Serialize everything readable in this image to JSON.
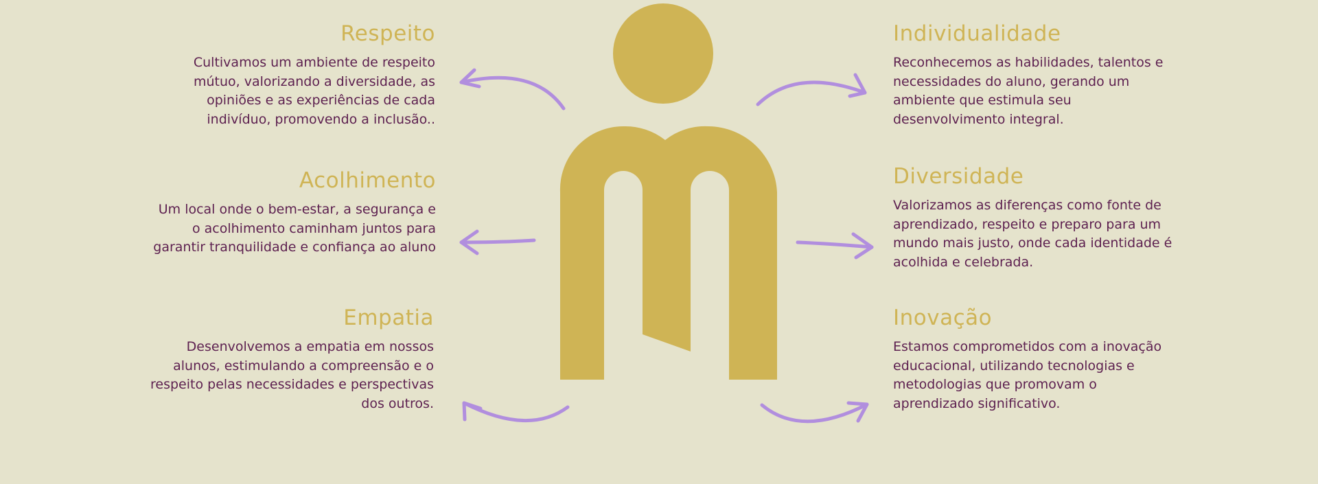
{
  "colors": {
    "background": "#e5e3cc",
    "heading": "#cfb455",
    "body_text": "#5c1f4f",
    "logo": "#cfb455",
    "arrow": "#b18ede"
  },
  "logo": {
    "icon": "person-letter-m-logo-icon"
  },
  "values": {
    "respeito": {
      "title": "Respeito",
      "text": "Cultivamos um ambiente de respeito mútuo, valorizando a diversidade, as opiniões e as experiências de cada indivíduo, promovendo a inclusão.."
    },
    "acolhimento": {
      "title": "Acolhimento",
      "text": "Um local onde o bem-estar, a segurança e o acolhimento caminham juntos para garantir tranquilidade e confiança ao aluno"
    },
    "empatia": {
      "title": "Empatia",
      "text": "Desenvolvemos a empatia em nossos alunos, estimulando a compreensão e o respeito pelas necessidades e perspectivas dos outros."
    },
    "individualidade": {
      "title": "Individualidade",
      "text": "Reconhecemos as habilidades, talentos e necessidades do aluno, gerando um ambiente que estimula seu desenvolvimento integral."
    },
    "diversidade": {
      "title": "Diversidade",
      "text": "Valorizamos as diferenças como fonte de aprendizado, respeito e preparo para um mundo mais justo, onde cada identidade é acolhida e celebrada."
    },
    "inovacao": {
      "title": "Inovação",
      "text": "Estamos comprometidos com a inovação educacional, utilizando tecnologias e metodologias que promovam o aprendizado significativo."
    }
  }
}
